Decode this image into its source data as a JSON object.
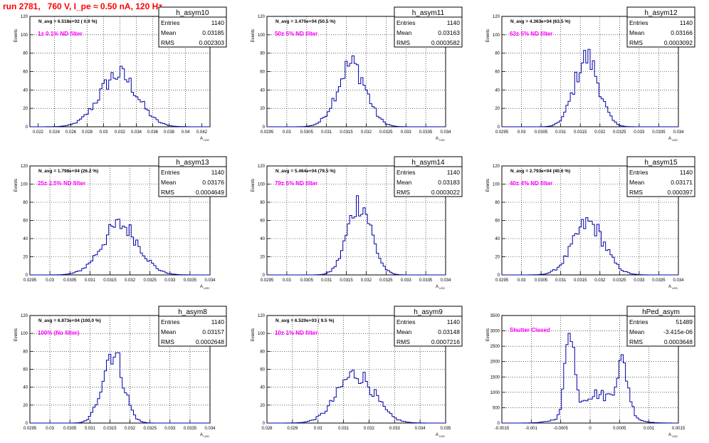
{
  "run_title": "run 2781,   760 V, I_pe ≈ 0.50 nA, 120 Hz",
  "colors": {
    "histogram_line": "#0000aa",
    "note_text": "#ff00ff",
    "run_title_text": "#ff0000",
    "frame": "#000000",
    "grid": "#000000"
  },
  "chart_data": [
    {
      "type": "histogram",
      "name": "h_asym10",
      "stats": {
        "entries": "1140",
        "mean": "0.03185",
        "rms": "0.002303"
      },
      "navg_text": "N_avg = 6.518e+02 ( 0.9 %)",
      "note": "1± 0.1% ND filter",
      "ylabel": "Events",
      "xlabel": "A_LED",
      "xlim": [
        0.021,
        0.043
      ],
      "ylim": [
        0,
        120
      ],
      "xticks": [
        "0.022",
        "0.024",
        "0.026",
        "0.028",
        "0.03",
        "0.032",
        "0.034",
        "0.036",
        "0.038",
        "0.04",
        "0.042"
      ],
      "xtick_values": [
        0.022,
        0.024,
        0.026,
        0.028,
        0.03,
        0.032,
        0.034,
        0.036,
        0.038,
        0.04,
        0.042
      ],
      "yticks": [
        "0",
        "20",
        "40",
        "60",
        "80",
        "100",
        "120"
      ],
      "grid": true,
      "peak_x": 0.0318,
      "width": 0.0023,
      "peak_y": 57
    },
    {
      "type": "histogram",
      "name": "h_asym11",
      "stats": {
        "entries": "1140",
        "mean": "0.03163",
        "rms": "0.0003582"
      },
      "navg_text": "N_avg = 3.470e+04 (50.5 %)",
      "note": "50± 5% ND filter",
      "ylabel": "Events",
      "xlabel": "A_LED",
      "xlim": [
        0.0295,
        0.034
      ],
      "ylim": [
        0,
        120
      ],
      "xticks": [
        "0.0295",
        "0.03",
        "0.0305",
        "0.031",
        "0.0315",
        "0.032",
        "0.0325",
        "0.033",
        "0.0335",
        "0.034"
      ],
      "xtick_values": [
        0.0295,
        0.03,
        0.0305,
        0.031,
        0.0315,
        0.032,
        0.0325,
        0.033,
        0.0335,
        0.034
      ],
      "yticks": [
        "0",
        "20",
        "40",
        "60",
        "80",
        "100",
        "120"
      ],
      "grid": true,
      "peak_x": 0.03163,
      "width": 0.00036,
      "peak_y": 68
    },
    {
      "type": "histogram",
      "name": "h_asym12",
      "stats": {
        "entries": "1140",
        "mean": "0.03166",
        "rms": "0.0003092"
      },
      "navg_text": "N_avg = 4.363e+04 (63.5 %)",
      "note": "63± 5% ND filter",
      "ylabel": "Events",
      "xlabel": "A_LED",
      "xlim": [
        0.0295,
        0.034
      ],
      "ylim": [
        0,
        120
      ],
      "xticks": [
        "0.0295",
        "0.03",
        "0.0305",
        "0.031",
        "0.0315",
        "0.032",
        "0.0325",
        "0.033",
        "0.0335",
        "0.034"
      ],
      "xtick_values": [
        0.0295,
        0.03,
        0.0305,
        0.031,
        0.0315,
        0.032,
        0.0325,
        0.033,
        0.0335,
        0.034
      ],
      "yticks": [
        "0",
        "20",
        "40",
        "60",
        "80",
        "100",
        "120"
      ],
      "grid": true,
      "peak_x": 0.03166,
      "width": 0.00031,
      "peak_y": 75
    },
    {
      "type": "histogram",
      "name": "h_asym13",
      "stats": {
        "entries": "1140",
        "mean": "0.03176",
        "rms": "0.0004649"
      },
      "navg_text": "N_avg = 1.798e+04 (26.2 %)",
      "note": "25± 2.5% ND filter",
      "ylabel": "Events",
      "xlabel": "A_LED",
      "xlim": [
        0.0295,
        0.034
      ],
      "ylim": [
        0,
        120
      ],
      "xticks": [
        "0.0295",
        "0.03",
        "0.0305",
        "0.031",
        "0.0315",
        "0.032",
        "0.0325",
        "0.033",
        "0.0335",
        "0.034"
      ],
      "xtick_values": [
        0.0295,
        0.03,
        0.0305,
        0.031,
        0.0315,
        0.032,
        0.0325,
        0.033,
        0.0335,
        0.034
      ],
      "yticks": [
        "0",
        "20",
        "40",
        "60",
        "80",
        "100",
        "120"
      ],
      "grid": true,
      "peak_x": 0.03176,
      "width": 0.00046,
      "peak_y": 55
    },
    {
      "type": "histogram",
      "name": "h_asym14",
      "stats": {
        "entries": "1140",
        "mean": "0.03183",
        "rms": "0.0003022"
      },
      "navg_text": "N_avg = 5.464e+04 (79.5 %)",
      "note": "79± 5% ND filter",
      "ylabel": "Events",
      "xlabel": "A_LED",
      "xlim": [
        0.0295,
        0.034
      ],
      "ylim": [
        0,
        120
      ],
      "xticks": [
        "0.0295",
        "0.03",
        "0.0305",
        "0.031",
        "0.0315",
        "0.032",
        "0.0325",
        "0.033",
        "0.0335",
        "0.034"
      ],
      "xtick_values": [
        0.0295,
        0.03,
        0.0305,
        0.031,
        0.0315,
        0.032,
        0.0325,
        0.033,
        0.0335,
        0.034
      ],
      "yticks": [
        "0",
        "20",
        "40",
        "60",
        "80",
        "100",
        "120"
      ],
      "grid": true,
      "peak_x": 0.03183,
      "width": 0.0003,
      "peak_y": 80
    },
    {
      "type": "histogram",
      "name": "h_asym15",
      "stats": {
        "entries": "1140",
        "mean": "0.03171",
        "rms": "0.000397"
      },
      "navg_text": "N_avg = 2.793e+04 (40.6 %)",
      "note": "40± 4% ND filter",
      "ylabel": "Events",
      "xlabel": "A_LED",
      "xlim": [
        0.0295,
        0.034
      ],
      "ylim": [
        0,
        120
      ],
      "xticks": [
        "0.0295",
        "0.03",
        "0.0305",
        "0.031",
        "0.0315",
        "0.032",
        "0.0325",
        "0.033",
        "0.0335",
        "0.034"
      ],
      "xtick_values": [
        0.0295,
        0.03,
        0.0305,
        0.031,
        0.0315,
        0.032,
        0.0325,
        0.033,
        0.0335,
        0.034
      ],
      "yticks": [
        "0",
        "20",
        "40",
        "60",
        "80",
        "100",
        "120"
      ],
      "grid": true,
      "peak_x": 0.03171,
      "width": 0.0004,
      "peak_y": 57
    },
    {
      "type": "histogram",
      "name": "h_asym8",
      "stats": {
        "entries": "1140",
        "mean": "0.03157",
        "rms": "0.0002648"
      },
      "navg_text": "N_avg = 6.873e+04 (100.0 %)",
      "note": "100% (No filter)",
      "ylabel": "Events",
      "xlabel": "A_LED",
      "xlim": [
        0.0295,
        0.034
      ],
      "ylim": [
        0,
        120
      ],
      "xticks": [
        "0.0295",
        "0.03",
        "0.0305",
        "0.031",
        "0.0315",
        "0.032",
        "0.0325",
        "0.033",
        "0.0335",
        "0.034"
      ],
      "xtick_values": [
        0.0295,
        0.03,
        0.0305,
        0.031,
        0.0315,
        0.032,
        0.0325,
        0.033,
        0.0335,
        0.034
      ],
      "yticks": [
        "0",
        "20",
        "40",
        "60",
        "80",
        "100",
        "120"
      ],
      "grid": true,
      "peak_x": 0.03157,
      "width": 0.00026,
      "peak_y": 80
    },
    {
      "type": "histogram",
      "name": "h_asym9",
      "stats": {
        "entries": "1140",
        "mean": "0.03148",
        "rms": "0.0007216"
      },
      "navg_text": "N_avg = 6.520e+03 ( 9.5 %)",
      "note": "10± 1% ND filter",
      "ylabel": "Events",
      "xlabel": "A_LED",
      "xlim": [
        0.028,
        0.035
      ],
      "ylim": [
        0,
        120
      ],
      "xticks": [
        "0.028",
        "0.029",
        "0.03",
        "0.031",
        "0.032",
        "0.033",
        "0.034",
        "0.035"
      ],
      "xtick_values": [
        0.028,
        0.029,
        0.03,
        0.031,
        0.032,
        0.033,
        0.034,
        0.035
      ],
      "yticks": [
        "0",
        "20",
        "40",
        "60",
        "80",
        "100",
        "120"
      ],
      "grid": true,
      "peak_x": 0.03148,
      "width": 0.00072,
      "peak_y": 55
    },
    {
      "type": "histogram",
      "name": "hPed_asym",
      "stats": {
        "entries": "51489",
        "mean": "-3.415e-06",
        "rms": "0.0003648"
      },
      "navg_text": "",
      "note": "Shutter Closed",
      "ylabel": "Events",
      "xlabel": "A_LED",
      "xlim": [
        -0.0015,
        0.0015
      ],
      "ylim": [
        0,
        3500
      ],
      "xticks": [
        "-0.0015",
        "-0.001",
        "-0.0005",
        "0",
        "0.0005",
        "0.001",
        "0.0015"
      ],
      "xtick_values": [
        -0.0015,
        -0.001,
        -0.0005,
        0,
        0.0005,
        0.001,
        0.0015
      ],
      "yticks": [
        "0",
        "500",
        "1000",
        "1500",
        "2000",
        "2500",
        "3000",
        "3500"
      ],
      "grid": true,
      "bimodal": true,
      "peaks": [
        {
          "x": -0.00035,
          "width": 7e-05,
          "y": 3000
        },
        {
          "x": 0.00055,
          "width": 0.0001,
          "y": 1550
        },
        {
          "x": 0.0001,
          "width": 0.00035,
          "y": 950
        }
      ]
    }
  ]
}
